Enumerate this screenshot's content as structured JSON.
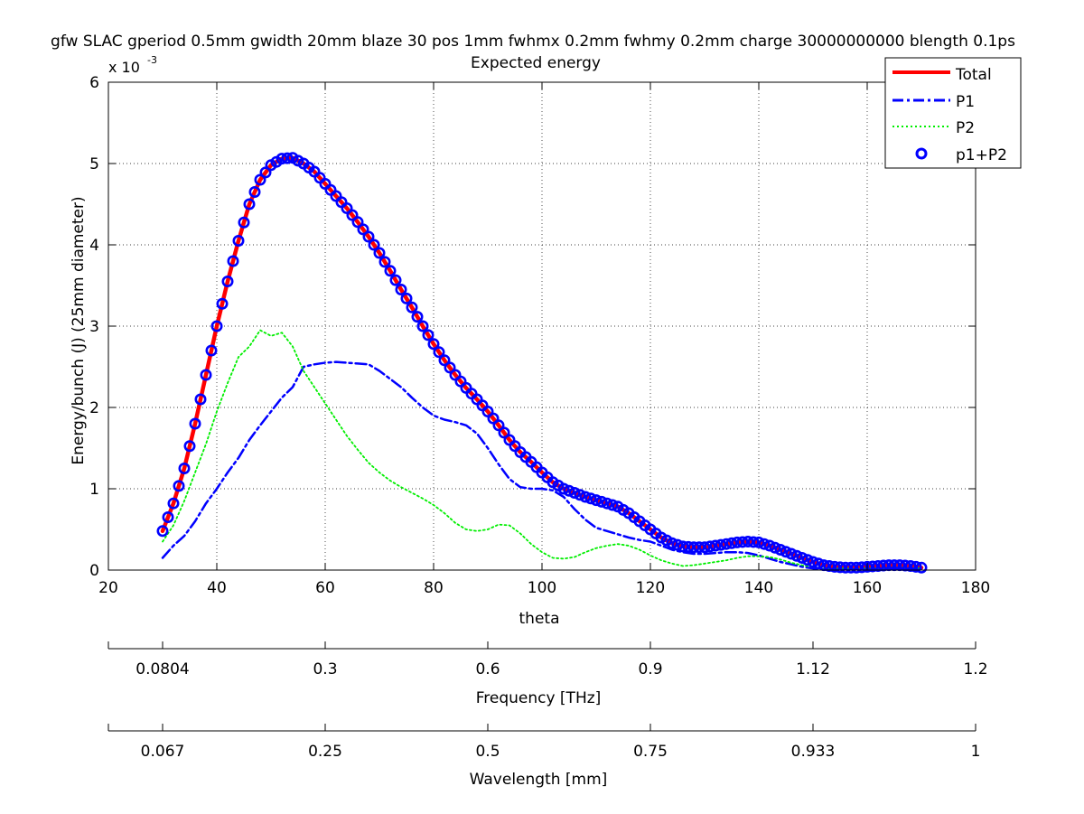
{
  "figure": {
    "title_line1": "gfw SLAC gperiod 0.5mm gwidth 20mm blaze 30 pos 1mm fwhmx 0.2mm fwhmy 0.2mm charge 30000000000 blength 0.1ps",
    "title_line2": "Expected energy",
    "exponent_base": "x 10",
    "exponent_power": "-3"
  },
  "chart_data": {
    "type": "line",
    "title": "Expected energy",
    "xlabel": "theta",
    "ylabel": "Energy/bunch (J) (25mm diameter)",
    "xlim": [
      20,
      180
    ],
    "ylim": [
      0,
      6
    ],
    "y_scale_factor": "x 10^-3",
    "xticks": [
      20,
      40,
      60,
      80,
      100,
      120,
      140,
      160,
      180
    ],
    "yticks": [
      0,
      1,
      2,
      3,
      4,
      5,
      6
    ],
    "grid": true,
    "legend_position": "top-right",
    "series": [
      {
        "name": "Total",
        "style": "solid",
        "color": "#ff0000",
        "points": [
          [
            30,
            0.48
          ],
          [
            32,
            0.82
          ],
          [
            34,
            1.25
          ],
          [
            36,
            1.8
          ],
          [
            38,
            2.4
          ],
          [
            40,
            3.0
          ],
          [
            42,
            3.55
          ],
          [
            44,
            4.05
          ],
          [
            46,
            4.5
          ],
          [
            48,
            4.8
          ],
          [
            50,
            4.98
          ],
          [
            52,
            5.06
          ],
          [
            54,
            5.07
          ],
          [
            56,
            5.0
          ],
          [
            58,
            4.9
          ],
          [
            60,
            4.75
          ],
          [
            62,
            4.6
          ],
          [
            64,
            4.45
          ],
          [
            66,
            4.28
          ],
          [
            68,
            4.1
          ],
          [
            70,
            3.9
          ],
          [
            72,
            3.68
          ],
          [
            74,
            3.45
          ],
          [
            76,
            3.23
          ],
          [
            78,
            3.0
          ],
          [
            80,
            2.78
          ],
          [
            82,
            2.58
          ],
          [
            84,
            2.4
          ],
          [
            86,
            2.24
          ],
          [
            88,
            2.1
          ],
          [
            90,
            1.95
          ],
          [
            92,
            1.78
          ],
          [
            94,
            1.6
          ],
          [
            96,
            1.45
          ],
          [
            98,
            1.33
          ],
          [
            100,
            1.2
          ],
          [
            102,
            1.08
          ],
          [
            104,
            1.0
          ],
          [
            106,
            0.95
          ],
          [
            108,
            0.9
          ],
          [
            110,
            0.86
          ],
          [
            112,
            0.82
          ],
          [
            114,
            0.78
          ],
          [
            116,
            0.7
          ],
          [
            118,
            0.6
          ],
          [
            120,
            0.5
          ],
          [
            122,
            0.4
          ],
          [
            124,
            0.33
          ],
          [
            126,
            0.29
          ],
          [
            128,
            0.28
          ],
          [
            130,
            0.28
          ],
          [
            132,
            0.3
          ],
          [
            134,
            0.32
          ],
          [
            136,
            0.34
          ],
          [
            138,
            0.35
          ],
          [
            140,
            0.34
          ],
          [
            142,
            0.3
          ],
          [
            144,
            0.25
          ],
          [
            146,
            0.2
          ],
          [
            148,
            0.15
          ],
          [
            150,
            0.1
          ],
          [
            152,
            0.06
          ],
          [
            154,
            0.04
          ],
          [
            156,
            0.03
          ],
          [
            158,
            0.03
          ],
          [
            160,
            0.04
          ],
          [
            162,
            0.05
          ],
          [
            164,
            0.06
          ],
          [
            166,
            0.06
          ],
          [
            168,
            0.05
          ],
          [
            170,
            0.03
          ]
        ]
      },
      {
        "name": "P1",
        "style": "dash-dot",
        "color": "#0000ff",
        "points": [
          [
            30,
            0.15
          ],
          [
            32,
            0.3
          ],
          [
            34,
            0.42
          ],
          [
            36,
            0.6
          ],
          [
            38,
            0.82
          ],
          [
            40,
            1.0
          ],
          [
            42,
            1.2
          ],
          [
            44,
            1.38
          ],
          [
            46,
            1.6
          ],
          [
            48,
            1.78
          ],
          [
            50,
            1.95
          ],
          [
            52,
            2.12
          ],
          [
            54,
            2.25
          ],
          [
            56,
            2.5
          ],
          [
            58,
            2.53
          ],
          [
            60,
            2.55
          ],
          [
            62,
            2.56
          ],
          [
            64,
            2.55
          ],
          [
            66,
            2.54
          ],
          [
            68,
            2.53
          ],
          [
            70,
            2.45
          ],
          [
            72,
            2.35
          ],
          [
            74,
            2.25
          ],
          [
            76,
            2.12
          ],
          [
            78,
            2.0
          ],
          [
            80,
            1.9
          ],
          [
            82,
            1.85
          ],
          [
            84,
            1.82
          ],
          [
            86,
            1.78
          ],
          [
            88,
            1.68
          ],
          [
            90,
            1.5
          ],
          [
            92,
            1.3
          ],
          [
            94,
            1.12
          ],
          [
            96,
            1.02
          ],
          [
            98,
            1.0
          ],
          [
            100,
            1.0
          ],
          [
            102,
            0.98
          ],
          [
            104,
            0.9
          ],
          [
            106,
            0.75
          ],
          [
            108,
            0.62
          ],
          [
            110,
            0.52
          ],
          [
            112,
            0.48
          ],
          [
            114,
            0.44
          ],
          [
            116,
            0.4
          ],
          [
            118,
            0.37
          ],
          [
            120,
            0.35
          ],
          [
            122,
            0.3
          ],
          [
            124,
            0.25
          ],
          [
            126,
            0.22
          ],
          [
            128,
            0.2
          ],
          [
            130,
            0.2
          ],
          [
            132,
            0.21
          ],
          [
            134,
            0.22
          ],
          [
            136,
            0.22
          ],
          [
            138,
            0.21
          ],
          [
            140,
            0.18
          ],
          [
            142,
            0.14
          ],
          [
            144,
            0.1
          ],
          [
            146,
            0.07
          ],
          [
            148,
            0.04
          ],
          [
            150,
            0.02
          ],
          [
            152,
            0.01
          ],
          [
            156,
            0.01
          ],
          [
            160,
            0.01
          ],
          [
            164,
            0.02
          ],
          [
            168,
            0.02
          ],
          [
            170,
            0.02
          ]
        ]
      },
      {
        "name": "P2",
        "style": "dotted",
        "color": "#00ee00",
        "points": [
          [
            30,
            0.35
          ],
          [
            32,
            0.55
          ],
          [
            34,
            0.85
          ],
          [
            36,
            1.2
          ],
          [
            38,
            1.55
          ],
          [
            40,
            1.95
          ],
          [
            42,
            2.3
          ],
          [
            44,
            2.62
          ],
          [
            46,
            2.75
          ],
          [
            48,
            2.95
          ],
          [
            50,
            2.88
          ],
          [
            52,
            2.92
          ],
          [
            54,
            2.75
          ],
          [
            56,
            2.45
          ],
          [
            58,
            2.25
          ],
          [
            60,
            2.05
          ],
          [
            62,
            1.85
          ],
          [
            64,
            1.65
          ],
          [
            66,
            1.48
          ],
          [
            68,
            1.32
          ],
          [
            70,
            1.2
          ],
          [
            72,
            1.1
          ],
          [
            74,
            1.02
          ],
          [
            76,
            0.95
          ],
          [
            78,
            0.88
          ],
          [
            80,
            0.8
          ],
          [
            82,
            0.7
          ],
          [
            84,
            0.58
          ],
          [
            86,
            0.5
          ],
          [
            88,
            0.48
          ],
          [
            90,
            0.5
          ],
          [
            92,
            0.56
          ],
          [
            94,
            0.55
          ],
          [
            96,
            0.45
          ],
          [
            98,
            0.32
          ],
          [
            100,
            0.22
          ],
          [
            102,
            0.15
          ],
          [
            104,
            0.14
          ],
          [
            106,
            0.16
          ],
          [
            108,
            0.22
          ],
          [
            110,
            0.27
          ],
          [
            112,
            0.3
          ],
          [
            114,
            0.32
          ],
          [
            116,
            0.3
          ],
          [
            118,
            0.25
          ],
          [
            120,
            0.18
          ],
          [
            122,
            0.12
          ],
          [
            124,
            0.08
          ],
          [
            126,
            0.05
          ],
          [
            128,
            0.06
          ],
          [
            130,
            0.08
          ],
          [
            132,
            0.1
          ],
          [
            134,
            0.12
          ],
          [
            136,
            0.15
          ],
          [
            138,
            0.17
          ],
          [
            140,
            0.17
          ],
          [
            142,
            0.16
          ],
          [
            144,
            0.13
          ],
          [
            146,
            0.09
          ],
          [
            148,
            0.06
          ],
          [
            150,
            0.04
          ],
          [
            152,
            0.02
          ],
          [
            156,
            0.02
          ],
          [
            160,
            0.02
          ],
          [
            164,
            0.03
          ],
          [
            168,
            0.03
          ],
          [
            170,
            0.02
          ]
        ]
      },
      {
        "name": "p1+P2",
        "style": "circle-markers",
        "color": "#0000ff",
        "marker_step_x": 1
      }
    ],
    "secondary_axes": [
      {
        "label": "Frequency [THz]",
        "tick_positions_theta": [
          30,
          60,
          90,
          120,
          150,
          180
        ],
        "tick_labels": [
          "0.0804",
          "0.3",
          "0.6",
          "0.9",
          "1.12",
          "1.2"
        ]
      },
      {
        "label": "Wavelength [mm]",
        "tick_positions_theta": [
          30,
          60,
          90,
          120,
          150,
          180
        ],
        "tick_labels": [
          "0.067",
          "0.25",
          "0.5",
          "0.75",
          "0.933",
          "1"
        ]
      }
    ]
  }
}
